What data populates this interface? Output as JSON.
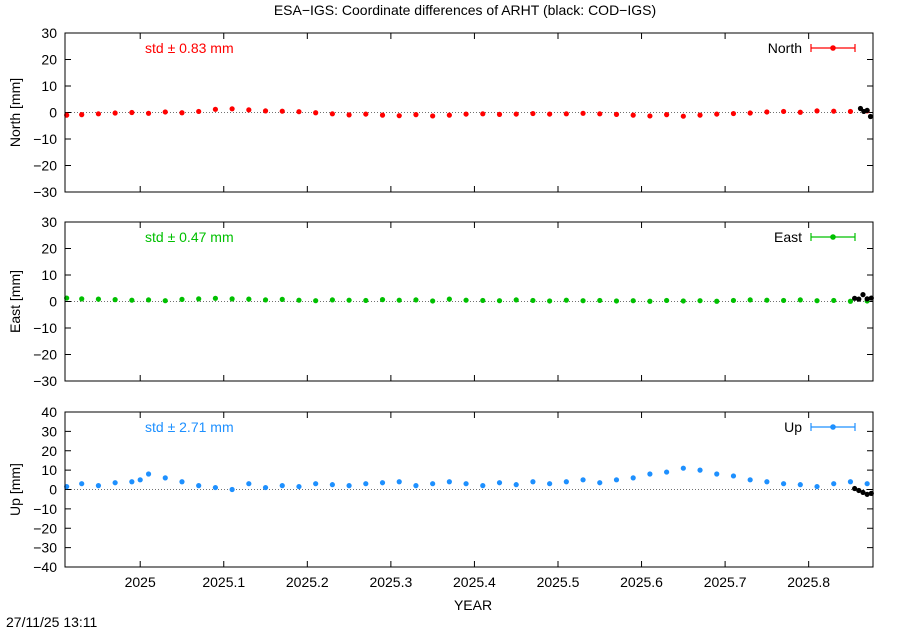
{
  "title": "ESA−IGS: Coordinate differences of ARHT (black: COD−IGS)",
  "timestamp": "27/11/25 13:11",
  "colors": {
    "north": "#ff0000",
    "east": "#00c000",
    "up": "#1e90ff",
    "cod": "#000000"
  },
  "chart_data": [
    {
      "type": "scatter",
      "ylabel": "North [mm]",
      "ylim": [
        -30,
        30
      ],
      "yticks": [
        30,
        20,
        10,
        0,
        -10,
        -20,
        -30
      ],
      "xlim": [
        2024.91,
        2025.877
      ],
      "std_label": "std ± 0.83 mm",
      "legend": "North",
      "legend_position": "top-right",
      "series": [
        {
          "name": "North",
          "color_key": "north",
          "x": [
            2024.912,
            2024.93,
            2024.95,
            2024.97,
            2024.99,
            2025.01,
            2025.03,
            2025.05,
            2025.07,
            2025.09,
            2025.11,
            2025.13,
            2025.15,
            2025.17,
            2025.19,
            2025.21,
            2025.23,
            2025.25,
            2025.27,
            2025.29,
            2025.31,
            2025.33,
            2025.35,
            2025.37,
            2025.39,
            2025.41,
            2025.43,
            2025.45,
            2025.47,
            2025.49,
            2025.51,
            2025.53,
            2025.55,
            2025.57,
            2025.59,
            2025.61,
            2025.63,
            2025.65,
            2025.67,
            2025.69,
            2025.71,
            2025.73,
            2025.75,
            2025.77,
            2025.79,
            2025.81,
            2025.83,
            2025.85,
            2025.87
          ],
          "y": [
            -1.0,
            -0.8,
            -0.5,
            -0.2,
            0.0,
            -0.3,
            0.2,
            -0.1,
            0.4,
            1.2,
            1.4,
            1.0,
            0.6,
            0.5,
            0.3,
            -0.1,
            -0.5,
            -0.9,
            -0.6,
            -1.0,
            -1.2,
            -0.8,
            -1.3,
            -1.0,
            -0.6,
            -0.5,
            -0.7,
            -0.6,
            -0.4,
            -0.6,
            -0.5,
            -0.3,
            -0.5,
            -0.7,
            -1.0,
            -1.3,
            -0.8,
            -1.4,
            -1.0,
            -0.6,
            -0.4,
            -0.2,
            0.2,
            0.4,
            0.1,
            0.6,
            0.5,
            0.4,
            0.6
          ]
        },
        {
          "name": "COD−IGS",
          "color_key": "cod",
          "x": [
            2025.862,
            2025.866,
            2025.87,
            2025.874
          ],
          "y": [
            1.5,
            0.4,
            0.8,
            -1.5
          ]
        }
      ]
    },
    {
      "type": "scatter",
      "ylabel": "East [mm]",
      "ylim": [
        -30,
        30
      ],
      "yticks": [
        30,
        20,
        10,
        0,
        -10,
        -20,
        -30
      ],
      "xlim": [
        2024.91,
        2025.877
      ],
      "std_label": "std ± 0.47 mm",
      "legend": "East",
      "legend_position": "top-right",
      "series": [
        {
          "name": "East",
          "color_key": "east",
          "x": [
            2024.912,
            2024.93,
            2024.95,
            2024.97,
            2024.99,
            2025.01,
            2025.03,
            2025.05,
            2025.07,
            2025.09,
            2025.11,
            2025.13,
            2025.15,
            2025.17,
            2025.19,
            2025.21,
            2025.23,
            2025.25,
            2025.27,
            2025.29,
            2025.31,
            2025.33,
            2025.35,
            2025.37,
            2025.39,
            2025.41,
            2025.43,
            2025.45,
            2025.47,
            2025.49,
            2025.51,
            2025.53,
            2025.55,
            2025.57,
            2025.59,
            2025.61,
            2025.63,
            2025.65,
            2025.67,
            2025.69,
            2025.71,
            2025.73,
            2025.75,
            2025.77,
            2025.79,
            2025.81,
            2025.83,
            2025.85,
            2025.87
          ],
          "y": [
            1.3,
            1.0,
            0.9,
            0.7,
            0.5,
            0.6,
            0.3,
            0.8,
            1.0,
            1.2,
            1.0,
            0.9,
            0.6,
            0.8,
            0.5,
            0.3,
            0.6,
            0.5,
            0.4,
            0.7,
            0.5,
            0.6,
            0.2,
            0.9,
            0.5,
            0.4,
            0.3,
            0.6,
            0.4,
            0.2,
            0.5,
            0.3,
            0.4,
            0.2,
            0.3,
            0.1,
            0.4,
            0.2,
            0.3,
            0.1,
            0.4,
            0.6,
            0.5,
            0.4,
            0.6,
            0.3,
            0.4,
            0.1,
            0.2
          ]
        },
        {
          "name": "COD−IGS",
          "color_key": "cod",
          "x": [
            2025.855,
            2025.86,
            2025.865,
            2025.87,
            2025.875
          ],
          "y": [
            1.2,
            0.9,
            2.6,
            1.0,
            1.3
          ]
        }
      ]
    },
    {
      "type": "scatter",
      "ylabel": "Up [mm]",
      "ylim": [
        -40,
        40
      ],
      "yticks": [
        40,
        30,
        20,
        10,
        0,
        -10,
        -20,
        -30,
        -40
      ],
      "xlim": [
        2024.91,
        2025.877
      ],
      "std_label": "std ± 2.71 mm",
      "legend": "Up",
      "legend_position": "top-right",
      "series": [
        {
          "name": "Up",
          "color_key": "up",
          "x": [
            2024.912,
            2024.93,
            2024.95,
            2024.97,
            2024.99,
            2025.0,
            2025.01,
            2025.03,
            2025.05,
            2025.07,
            2025.09,
            2025.11,
            2025.13,
            2025.15,
            2025.17,
            2025.19,
            2025.21,
            2025.23,
            2025.25,
            2025.27,
            2025.29,
            2025.31,
            2025.33,
            2025.35,
            2025.37,
            2025.39,
            2025.41,
            2025.43,
            2025.45,
            2025.47,
            2025.49,
            2025.51,
            2025.53,
            2025.55,
            2025.57,
            2025.59,
            2025.61,
            2025.63,
            2025.65,
            2025.67,
            2025.69,
            2025.71,
            2025.73,
            2025.75,
            2025.77,
            2025.79,
            2025.81,
            2025.83,
            2025.85,
            2025.87
          ],
          "y": [
            1.5,
            3.0,
            2.0,
            3.5,
            4.0,
            5.0,
            8.0,
            6.0,
            4.0,
            2.0,
            1.0,
            0.0,
            3.0,
            1.0,
            2.0,
            1.5,
            3.0,
            2.5,
            2.0,
            3.0,
            3.5,
            4.0,
            2.0,
            3.0,
            4.0,
            3.0,
            2.0,
            3.5,
            2.5,
            4.0,
            3.0,
            4.0,
            5.0,
            3.5,
            5.0,
            6.0,
            8.0,
            9.0,
            11.0,
            10.0,
            8.0,
            7.0,
            5.0,
            4.0,
            3.0,
            2.5,
            1.5,
            3.0,
            4.0,
            3.0
          ]
        },
        {
          "name": "COD−IGS",
          "color_key": "cod",
          "x": [
            2025.855,
            2025.86,
            2025.865,
            2025.87,
            2025.875
          ],
          "y": [
            0.5,
            -0.5,
            -1.5,
            -2.5,
            -2.0
          ]
        }
      ]
    }
  ],
  "x_axis": {
    "label": "YEAR",
    "ticks": [
      2025,
      2025.1,
      2025.2,
      2025.3,
      2025.4,
      2025.5,
      2025.6,
      2025.7,
      2025.8
    ],
    "tick_labels": [
      "2025",
      "2025.1",
      "2025.2",
      "2025.3",
      "2025.4",
      "2025.5",
      "2025.6",
      "2025.7",
      "2025.8"
    ]
  }
}
